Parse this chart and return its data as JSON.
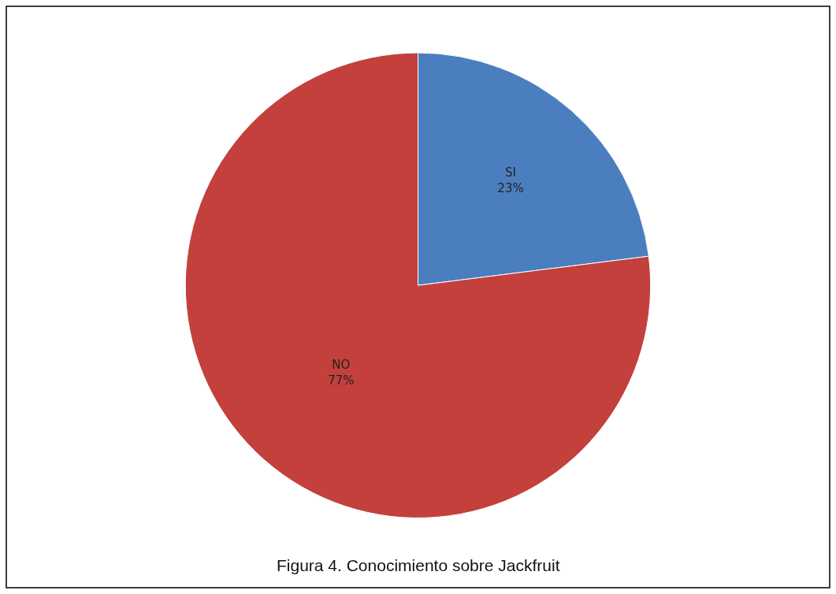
{
  "chart_data": {
    "type": "pie",
    "categories": [
      "SI",
      "NO"
    ],
    "values": [
      23,
      77
    ],
    "value_labels": [
      "23%",
      "77%"
    ],
    "colors": [
      "#4a7ebf",
      "#c3403c"
    ],
    "legend": false,
    "annotations": [
      "Figura 4. Conocimiento sobre Jackfruit"
    ]
  }
}
